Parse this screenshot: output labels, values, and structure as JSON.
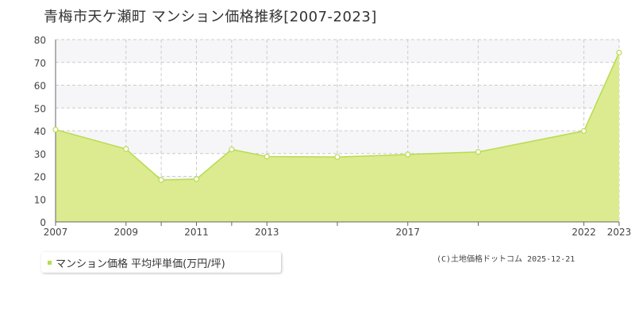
{
  "title": "青梅市天ケ瀬町 マンション価格推移[2007-2023]",
  "legend": {
    "label": "マンション価格 平均坪単価(万円/坪)"
  },
  "copyright": "(C)土地価格ドットコム 2025-12-21",
  "colors": {
    "area_fill": "#dceb8f",
    "line": "#b6dc50",
    "grid": "#cccccc",
    "band": "#f6f5f8",
    "marker": "#ffffff"
  },
  "chart_data": {
    "type": "area",
    "x": [
      2007,
      2009,
      2010,
      2011,
      2012,
      2013,
      2015,
      2017,
      2019,
      2022,
      2023
    ],
    "values": [
      40.5,
      32,
      18.4,
      18.8,
      31.8,
      28.7,
      28.5,
      29.6,
      30.7,
      39.9,
      74.3
    ],
    "x_tick_labels": [
      "2007",
      "2009",
      "2011",
      "2013",
      "2017",
      "2022",
      "2023"
    ],
    "y_ticks": [
      0,
      10,
      20,
      30,
      40,
      50,
      60,
      70,
      80
    ],
    "ylim": [
      0,
      80
    ],
    "xlim": [
      2007,
      2023
    ],
    "grid": true
  }
}
